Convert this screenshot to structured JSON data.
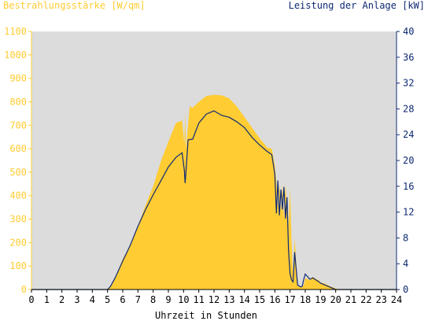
{
  "chart_data": {
    "type": "area",
    "title_left": "Bestrahlungsstärke [W/qm]",
    "title_right": "Leistung der Anlage [kW]",
    "xlabel": "Uhrzeit in Stunden",
    "xlim": [
      0,
      24
    ],
    "ylim_left": [
      0,
      1100
    ],
    "ylim_right": [
      0,
      40
    ],
    "x_ticks": [
      "0",
      "1",
      "2",
      "3",
      "4",
      "5",
      "6",
      "7",
      "8",
      "9",
      "10",
      "11",
      "12",
      "13",
      "14",
      "15",
      "16",
      "17",
      "18",
      "19",
      "20",
      "21",
      "22",
      "23",
      "24"
    ],
    "y_ticks_left": [
      "0",
      "100",
      "200",
      "300",
      "400",
      "500",
      "600",
      "700",
      "800",
      "900",
      "1000",
      "1100"
    ],
    "y_ticks_right": [
      "0",
      "4",
      "8",
      "12",
      "16",
      "20",
      "24",
      "28",
      "32",
      "36",
      "40"
    ],
    "colors": {
      "plot_background": "#dcdcdc",
      "irradiance_fill": "#ffcc33",
      "power_line": "#0f2a73",
      "left_axis": "#ffcc33",
      "right_axis": "#0f2a73"
    },
    "series": [
      {
        "name": "Bestrahlungsstärke [W/qm]",
        "axis": "left",
        "style": "area",
        "x": [
          0,
          5.0,
          5.2,
          5.5,
          6.0,
          6.5,
          7.0,
          7.5,
          8.0,
          8.5,
          9.0,
          9.5,
          9.9,
          10.05,
          10.1,
          10.15,
          10.4,
          10.6,
          11.0,
          11.5,
          12.0,
          12.5,
          13.0,
          13.5,
          14.0,
          14.5,
          15.0,
          15.5,
          15.8,
          16.0,
          16.1,
          16.2,
          16.3,
          16.4,
          16.5,
          16.6,
          16.7,
          16.8,
          16.9,
          17.0,
          17.1,
          17.2,
          17.3,
          17.5,
          17.7,
          17.8,
          17.9,
          18.0,
          18.3,
          18.5,
          18.7,
          18.9,
          19.0,
          19.3,
          19.6,
          20.0,
          20.2,
          20.4,
          20.5,
          24
        ],
        "y": [
          0,
          0,
          15,
          50,
          130,
          190,
          270,
          360,
          440,
          545,
          630,
          710,
          720,
          620,
          760,
          600,
          780,
          775,
          800,
          825,
          830,
          828,
          815,
          780,
          735,
          690,
          645,
          605,
          600,
          530,
          460,
          350,
          450,
          330,
          450,
          300,
          450,
          350,
          280,
          430,
          200,
          60,
          220,
          20,
          12,
          10,
          20,
          50,
          40,
          55,
          45,
          40,
          30,
          25,
          15,
          5,
          0,
          0,
          0,
          0
        ]
      },
      {
        "name": "Leistung der Anlage [kW]",
        "axis": "right",
        "style": "line",
        "x": [
          0,
          5.0,
          5.2,
          5.5,
          6.0,
          6.5,
          7.0,
          7.5,
          8.0,
          8.5,
          9.0,
          9.5,
          9.9,
          10.05,
          10.1,
          10.15,
          10.3,
          10.6,
          11.0,
          11.5,
          12.0,
          12.5,
          13.0,
          13.5,
          14.0,
          14.5,
          15.0,
          15.5,
          15.8,
          16.0,
          16.1,
          16.2,
          16.3,
          16.4,
          16.5,
          16.6,
          16.7,
          16.8,
          16.9,
          17.0,
          17.1,
          17.2,
          17.3,
          17.5,
          17.7,
          17.8,
          17.9,
          18.0,
          18.3,
          18.5,
          18.7,
          18.9,
          19.0,
          19.3,
          19.6,
          20.0,
          20.2,
          20.4,
          20.5,
          24
        ],
        "y": [
          0,
          0,
          0.5,
          1.8,
          4.4,
          6.9,
          9.8,
          12.4,
          14.7,
          16.8,
          19.0,
          20.5,
          21.2,
          18.5,
          16.5,
          18.0,
          23.2,
          23.3,
          25.8,
          27.2,
          27.7,
          27.0,
          26.7,
          26.0,
          25.1,
          23.6,
          22.4,
          21.4,
          20.9,
          17.9,
          11.8,
          16.9,
          11.5,
          15.5,
          12.4,
          15.9,
          11.0,
          14.3,
          6.1,
          2.4,
          1.5,
          1.2,
          5.8,
          0.7,
          0.4,
          0.5,
          1.6,
          2.4,
          1.6,
          1.8,
          1.5,
          1.2,
          1.0,
          0.7,
          0.4,
          0,
          0,
          0,
          0,
          0
        ]
      }
    ]
  }
}
